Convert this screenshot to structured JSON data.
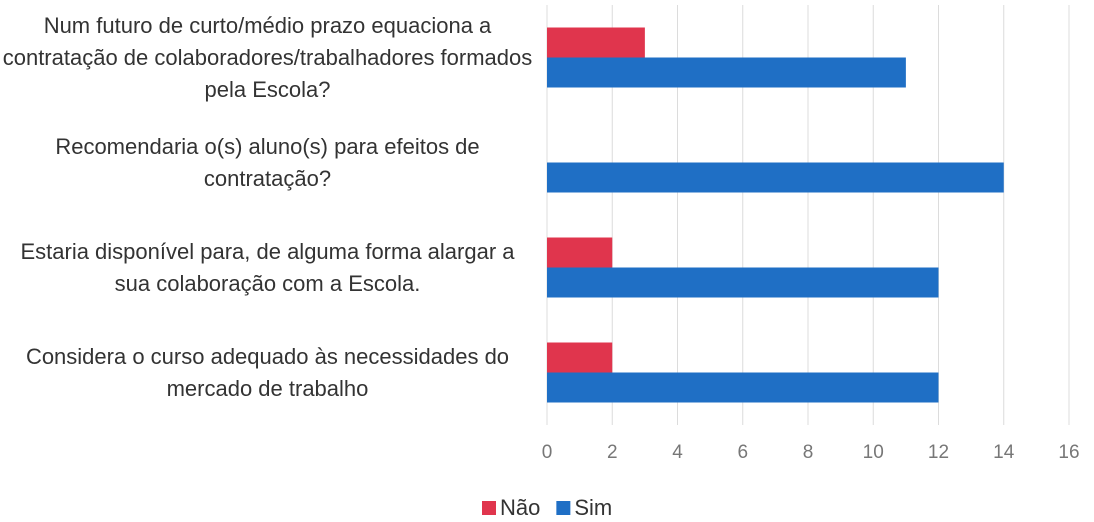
{
  "chart_data": {
    "type": "bar",
    "orientation": "horizontal",
    "categories": [
      "Num futuro de curto/médio prazo equaciona a contratação de colaboradores/trabalhadores formados pela Escola?",
      "Recomendaria o(s) aluno(s) para efeitos de contratação?",
      "Estaria disponível para, de alguma forma alargar a sua colaboração com a Escola.",
      "Considera o curso adequado às necessidades do mercado de trabalho"
    ],
    "series": [
      {
        "name": "Não",
        "color": "#e0354d",
        "values": [
          3,
          0,
          2,
          2
        ]
      },
      {
        "name": "Sim",
        "color": "#1f6fc5",
        "values": [
          11,
          14,
          12,
          12
        ]
      }
    ],
    "xlim": [
      0,
      16
    ],
    "xticks": [
      0,
      2,
      4,
      6,
      8,
      10,
      12,
      14,
      16
    ],
    "grid": true,
    "legend": "bottom"
  }
}
